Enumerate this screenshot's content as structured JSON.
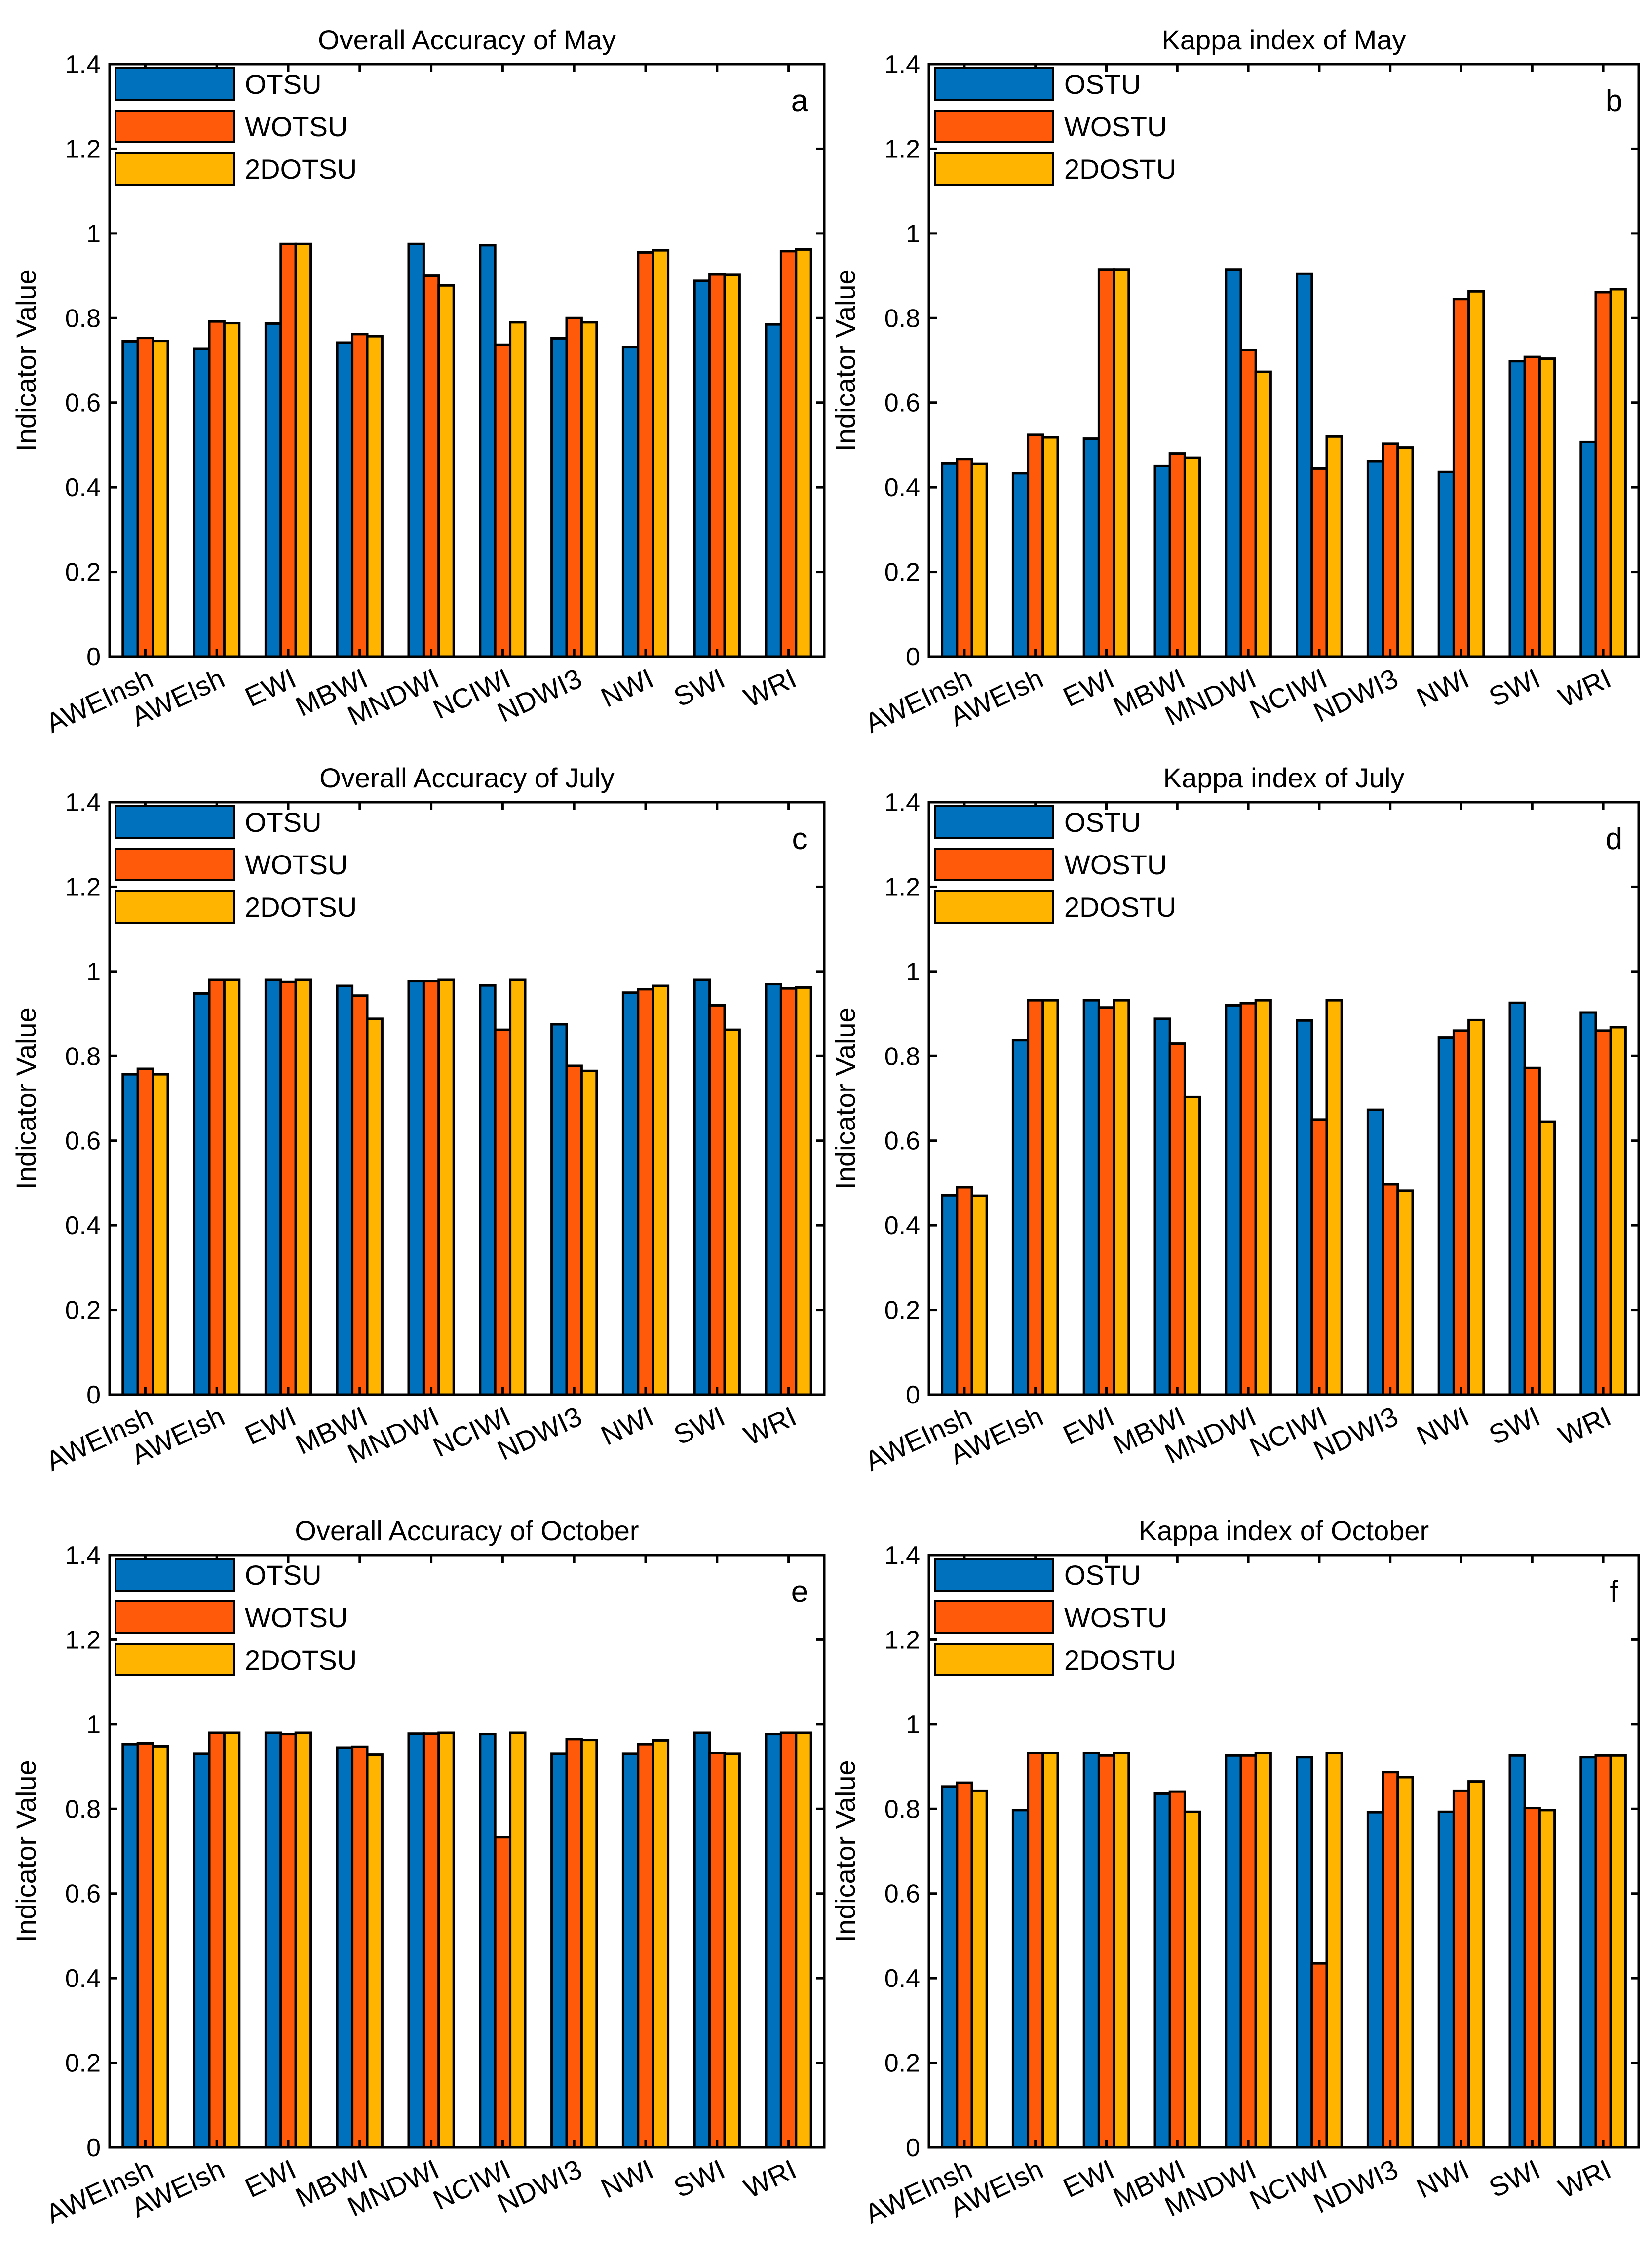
{
  "colors": {
    "series1": "#0072BD",
    "series2": "#FF5A0A",
    "series3": "#FFB400"
  },
  "chart_data": [
    {
      "type": "bar",
      "panel": "a",
      "title": "Overall Accuracy of May",
      "ylabel": "Indicator Value",
      "xlabel": "",
      "ylim": [
        0,
        1.4
      ],
      "yticks": [
        "0",
        "0.2",
        "0.4",
        "0.6",
        "0.8",
        "1",
        "1.2",
        "1.4"
      ],
      "legend_position": "top-left",
      "categories": [
        "AWEInsh",
        "AWEIsh",
        "EWI",
        "MBWI",
        "MNDWI",
        "NCIWI",
        "NDWI3",
        "NWI",
        "SWI",
        "WRI"
      ],
      "series": [
        {
          "name": "OTSU",
          "values": [
            0.745,
            0.728,
            0.787,
            0.742,
            0.975,
            0.972,
            0.752,
            0.732,
            0.888,
            0.785
          ]
        },
        {
          "name": "WOTSU",
          "values": [
            0.753,
            0.792,
            0.975,
            0.762,
            0.9,
            0.737,
            0.8,
            0.955,
            0.903,
            0.958
          ]
        },
        {
          "name": "2DOTSU",
          "values": [
            0.746,
            0.788,
            0.975,
            0.757,
            0.877,
            0.79,
            0.79,
            0.96,
            0.902,
            0.962
          ]
        }
      ]
    },
    {
      "type": "bar",
      "panel": "b",
      "title": "Kappa index of May",
      "ylabel": "Indicator Value",
      "xlabel": "",
      "ylim": [
        0,
        1.4
      ],
      "yticks": [
        "0",
        "0.2",
        "0.4",
        "0.6",
        "0.8",
        "1",
        "1.2",
        "1.4"
      ],
      "legend_position": "top-left",
      "categories": [
        "AWEInsh",
        "AWEIsh",
        "EWI",
        "MBWI",
        "MNDWI",
        "NCIWI",
        "NDWI3",
        "NWI",
        "SWI",
        "WRI"
      ],
      "series": [
        {
          "name": "OSTU",
          "values": [
            0.457,
            0.433,
            0.515,
            0.451,
            0.915,
            0.905,
            0.462,
            0.436,
            0.698,
            0.507
          ]
        },
        {
          "name": "WOSTU",
          "values": [
            0.467,
            0.524,
            0.915,
            0.48,
            0.724,
            0.444,
            0.503,
            0.845,
            0.708,
            0.861
          ]
        },
        {
          "name": "2DOSTU",
          "values": [
            0.456,
            0.518,
            0.915,
            0.47,
            0.673,
            0.52,
            0.494,
            0.863,
            0.704,
            0.868
          ]
        }
      ]
    },
    {
      "type": "bar",
      "panel": "c",
      "title": "Overall Accuracy of July",
      "ylabel": "Indicator Value",
      "xlabel": "",
      "ylim": [
        0,
        1.4
      ],
      "yticks": [
        "0",
        "0.2",
        "0.4",
        "0.6",
        "0.8",
        "1",
        "1.2",
        "1.4"
      ],
      "legend_position": "top-left",
      "categories": [
        "AWEInsh",
        "AWEIsh",
        "EWI",
        "MBWI",
        "MNDWI",
        "NCIWI",
        "NDWI3",
        "NWI",
        "SWI",
        "WRI"
      ],
      "series": [
        {
          "name": "OTSU",
          "values": [
            0.757,
            0.948,
            0.98,
            0.966,
            0.977,
            0.967,
            0.875,
            0.95,
            0.98,
            0.97
          ]
        },
        {
          "name": "WOTSU",
          "values": [
            0.77,
            0.98,
            0.975,
            0.943,
            0.977,
            0.862,
            0.777,
            0.958,
            0.92,
            0.96
          ]
        },
        {
          "name": "2DOTSU",
          "values": [
            0.757,
            0.98,
            0.98,
            0.888,
            0.98,
            0.98,
            0.765,
            0.966,
            0.862,
            0.962
          ]
        }
      ]
    },
    {
      "type": "bar",
      "panel": "d",
      "title": "Kappa index of July",
      "ylabel": "Indicator Value",
      "xlabel": "",
      "ylim": [
        0,
        1.4
      ],
      "yticks": [
        "0",
        "0.2",
        "0.4",
        "0.6",
        "0.8",
        "1",
        "1.2",
        "1.4"
      ],
      "legend_position": "top-left",
      "categories": [
        "AWEInsh",
        "AWEIsh",
        "EWI",
        "MBWI",
        "MNDWI",
        "NCIWI",
        "NDWI3",
        "NWI",
        "SWI",
        "WRI"
      ],
      "series": [
        {
          "name": "OSTU",
          "values": [
            0.471,
            0.838,
            0.932,
            0.888,
            0.92,
            0.884,
            0.673,
            0.844,
            0.926,
            0.903
          ]
        },
        {
          "name": "WOSTU",
          "values": [
            0.49,
            0.932,
            0.915,
            0.83,
            0.925,
            0.65,
            0.497,
            0.86,
            0.772,
            0.86
          ]
        },
        {
          "name": "2DOSTU",
          "values": [
            0.47,
            0.932,
            0.932,
            0.703,
            0.932,
            0.932,
            0.482,
            0.885,
            0.645,
            0.868
          ]
        }
      ]
    },
    {
      "type": "bar",
      "panel": "e",
      "title": "Overall Accuracy of October",
      "ylabel": "Indicator Value",
      "xlabel": "",
      "ylim": [
        0,
        1.4
      ],
      "yticks": [
        "0",
        "0.2",
        "0.4",
        "0.6",
        "0.8",
        "1",
        "1.2",
        "1.4"
      ],
      "legend_position": "top-left",
      "categories": [
        "AWEInsh",
        "AWEIsh",
        "EWI",
        "MBWI",
        "MNDWI",
        "NCIWI",
        "NDWI3",
        "NWI",
        "SWI",
        "WRI"
      ],
      "series": [
        {
          "name": "OTSU",
          "values": [
            0.953,
            0.93,
            0.98,
            0.945,
            0.978,
            0.977,
            0.93,
            0.93,
            0.98,
            0.977
          ]
        },
        {
          "name": "WOTSU",
          "values": [
            0.955,
            0.98,
            0.977,
            0.947,
            0.978,
            0.733,
            0.965,
            0.953,
            0.932,
            0.98
          ]
        },
        {
          "name": "2DOTSU",
          "values": [
            0.948,
            0.98,
            0.98,
            0.928,
            0.98,
            0.98,
            0.963,
            0.962,
            0.93,
            0.98
          ]
        }
      ]
    },
    {
      "type": "bar",
      "panel": "f",
      "title": "Kappa index of October",
      "ylabel": "Indicator Value",
      "xlabel": "",
      "ylim": [
        0,
        1.4
      ],
      "yticks": [
        "0",
        "0.2",
        "0.4",
        "0.6",
        "0.8",
        "1",
        "1.2",
        "1.4"
      ],
      "legend_position": "top-left",
      "categories": [
        "AWEInsh",
        "AWEIsh",
        "EWI",
        "MBWI",
        "MNDWI",
        "NCIWI",
        "NDWI3",
        "NWI",
        "SWI",
        "WRI"
      ],
      "series": [
        {
          "name": "OSTU",
          "values": [
            0.853,
            0.797,
            0.932,
            0.836,
            0.926,
            0.922,
            0.792,
            0.793,
            0.926,
            0.922
          ]
        },
        {
          "name": "WOSTU",
          "values": [
            0.862,
            0.932,
            0.926,
            0.841,
            0.926,
            0.435,
            0.887,
            0.843,
            0.802,
            0.926
          ]
        },
        {
          "name": "2DOSTU",
          "values": [
            0.843,
            0.932,
            0.932,
            0.793,
            0.932,
            0.932,
            0.875,
            0.865,
            0.797,
            0.926
          ]
        }
      ]
    }
  ]
}
